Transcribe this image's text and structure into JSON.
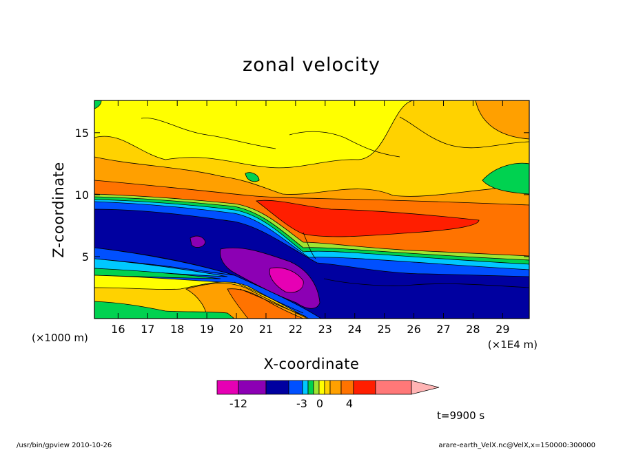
{
  "chart_data": {
    "type": "heatmap",
    "title": "zonal velocity",
    "xlabel": "X-coordinate",
    "ylabel": "Z-coordinate",
    "x_unit_left": "(×1000 m)",
    "x_unit_right": "(×1E4 m)",
    "x_ticks": [
      16,
      17,
      18,
      19,
      20,
      21,
      22,
      23,
      24,
      25,
      26,
      27,
      28,
      29
    ],
    "y_ticks": [
      5,
      10,
      15
    ],
    "xlim": [
      15.2,
      29.9
    ],
    "ylim": [
      0,
      17.6
    ],
    "time_label": "t=9900 s",
    "colorbar": {
      "colors": [
        "#e600b4",
        "#8c00b4",
        "#0000a0",
        "#0050ff",
        "#00c8ff",
        "#00d250",
        "#a0e632",
        "#ffff00",
        "#ffd200",
        "#ffa000",
        "#ff7300",
        "#ff1e00",
        "#ff7878",
        "#ffb4b4"
      ],
      "tick_labels": [
        "-12",
        "-3",
        "0",
        "4"
      ],
      "tick_values": [
        -12,
        -3,
        0,
        4
      ]
    }
  },
  "footer": {
    "left": "/usr/bin/gpview   2010-10-26",
    "right": "arare-earth_VelX.nc@VelX,x=150000:300000"
  }
}
